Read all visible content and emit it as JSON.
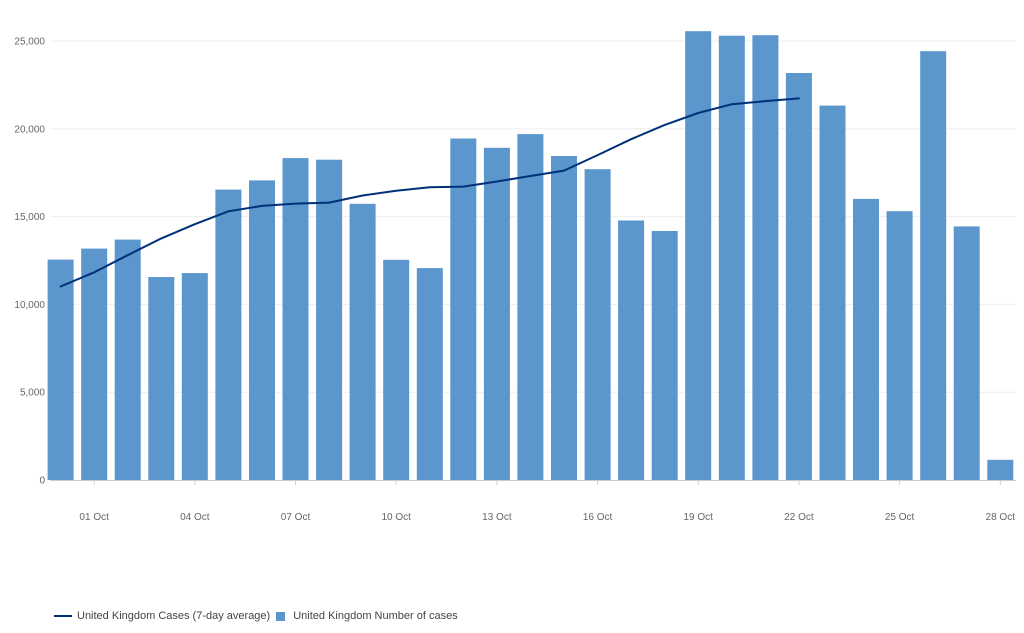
{
  "chart_data": {
    "type": "bar",
    "categories": [
      "30 Sep",
      "01 Oct",
      "02 Oct",
      "03 Oct",
      "04 Oct",
      "05 Oct",
      "06 Oct",
      "07 Oct",
      "08 Oct",
      "09 Oct",
      "10 Oct",
      "11 Oct",
      "12 Oct",
      "13 Oct",
      "14 Oct",
      "15 Oct",
      "16 Oct",
      "17 Oct",
      "18 Oct",
      "19 Oct",
      "20 Oct",
      "21 Oct",
      "22 Oct",
      "23 Oct",
      "24 Oct",
      "25 Oct",
      "26 Oct",
      "27 Oct",
      "28 Oct"
    ],
    "x_tick_labels": [
      "01 Oct",
      "04 Oct",
      "07 Oct",
      "10 Oct",
      "13 Oct",
      "16 Oct",
      "19 Oct",
      "22 Oct",
      "25 Oct",
      "28 Oct"
    ],
    "y_tick_labels": [
      "0",
      "5,000",
      "10,000",
      "15,000",
      "20,000",
      "25,000"
    ],
    "y_ticks": [
      0,
      5000,
      10000,
      15000,
      20000,
      25000
    ],
    "ylim": [
      0,
      26500
    ],
    "grid": true,
    "legend_position": "bottom-left",
    "series": [
      {
        "name": "United Kingdom Number of cases",
        "type": "bar",
        "color": "#5b96cc",
        "values": [
          12550,
          13180,
          13690,
          11560,
          11780,
          16540,
          17060,
          18330,
          18240,
          15730,
          12540,
          12070,
          19450,
          18920,
          19700,
          18450,
          17700,
          14780,
          14180,
          25560,
          25300,
          25330,
          23180,
          21320,
          16010,
          15310,
          24420,
          14440,
          1150
        ]
      },
      {
        "name": "United Kingdom Cases (7-day average)",
        "type": "line",
        "color": "#003078",
        "values": [
          11020,
          11830,
          12800,
          13760,
          14570,
          15300,
          15610,
          15740,
          15800,
          16200,
          16470,
          16670,
          16710,
          17000,
          17310,
          17620,
          18500,
          19410,
          20220,
          20900,
          21400,
          21580,
          21730,
          null,
          null,
          null,
          null,
          null,
          null
        ]
      }
    ],
    "title": "",
    "xlabel": "",
    "ylabel": ""
  }
}
